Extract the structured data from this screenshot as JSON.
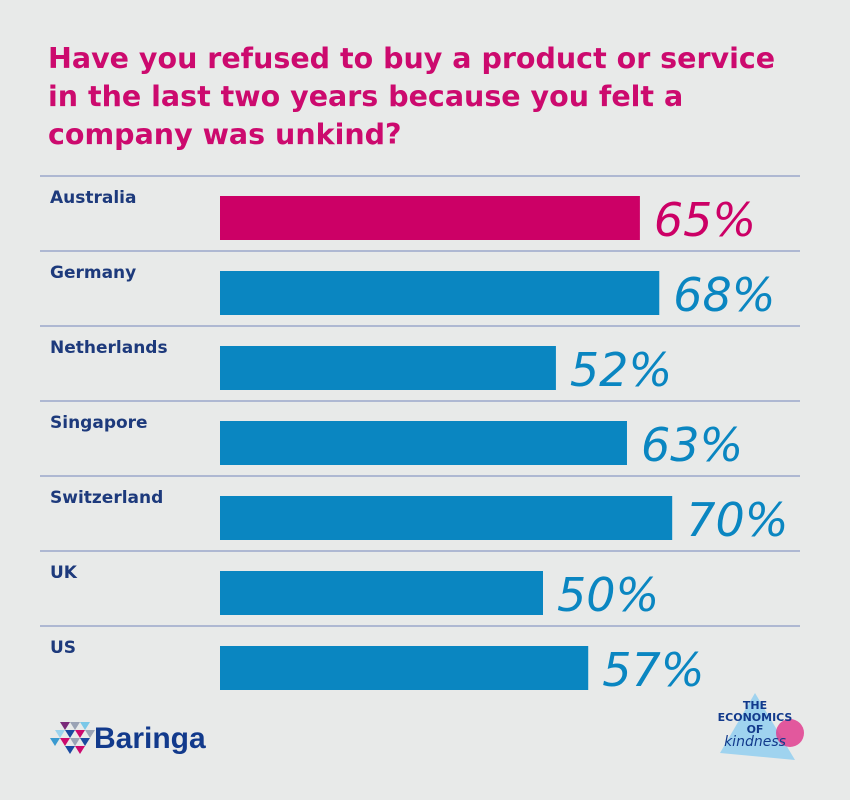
{
  "chart_data": {
    "type": "bar",
    "orientation": "horizontal",
    "title": "Have you refused to buy a product or service in the last two years because you felt a company was unkind?",
    "categories": [
      "Australia",
      "Germany",
      "Netherlands",
      "Singapore",
      "Switzerland",
      "UK",
      "US"
    ],
    "values": [
      65,
      68,
      52,
      63,
      70,
      50,
      57
    ],
    "value_labels": [
      "65%",
      "68%",
      "52%",
      "63%",
      "70%",
      "50%",
      "57%"
    ],
    "unit": "%",
    "xlim": [
      0,
      100
    ],
    "highlight_category": "Australia",
    "colors": {
      "highlight": "#cc0066",
      "default": "#0a86c1",
      "title": "#cc0a6e",
      "labels": "#1d3a7c",
      "separator": "#8a9bc4"
    },
    "grid": false
  },
  "branding": {
    "company_logo": "Baringa",
    "campaign_logo": [
      "THE",
      "ECONOMICS",
      "OF",
      "kindness"
    ]
  }
}
